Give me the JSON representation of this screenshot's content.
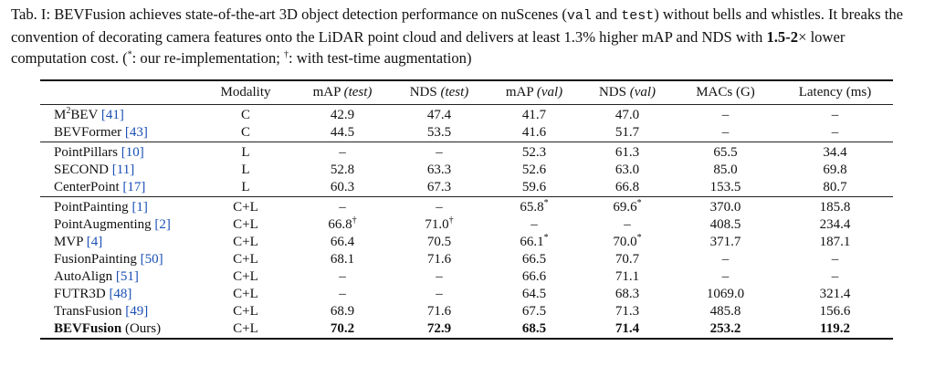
{
  "caption": {
    "prefix": "Tab. I: BEVFusion achieves state-of-the-art 3D object detection performance on nuScenes (",
    "val": "val",
    "and": " and ",
    "test": "test",
    "line1_end": ") without bells and whistles. It breaks the convention of decorating camera features onto the LiDAR point cloud and delivers at least 1.3% higher mAP and NDS with ",
    "speedup": "1.5-2",
    "times": "×",
    "after_speedup": " lower computation cost. (",
    "star": "*",
    "star_note": ": our re-implementation; ",
    "dagger": "†",
    "dagger_note": ": with test-time augmentation)"
  },
  "header": {
    "method": "",
    "modality": "Modality",
    "map_test": "mAP",
    "map_test_split": "(test)",
    "nds_test": "NDS",
    "nds_test_split": "(test)",
    "map_val": "mAP",
    "map_val_split": "(val)",
    "nds_val": "NDS",
    "nds_val_split": "(val)",
    "macs": "MACs (G)",
    "latency": "Latency (ms)"
  },
  "groups": [
    [
      {
        "name": "M",
        "sup": "2",
        "name_rest": "BEV",
        "cite": "[41]",
        "modality": "C",
        "map_test": "42.9",
        "nds_test": "47.4",
        "map_val": "41.7",
        "nds_val": "47.0",
        "macs": "–",
        "latency": "–"
      },
      {
        "name": "BEVFormer",
        "cite": "[43]",
        "modality": "C",
        "map_test": "44.5",
        "nds_test": "53.5",
        "map_val": "41.6",
        "nds_val": "51.7",
        "macs": "–",
        "latency": "–"
      }
    ],
    [
      {
        "name": "PointPillars",
        "cite": "[10]",
        "modality": "L",
        "map_test": "–",
        "nds_test": "–",
        "map_val": "52.3",
        "nds_val": "61.3",
        "macs": "65.5",
        "latency": "34.4"
      },
      {
        "name": "SECOND",
        "cite": "[11]",
        "modality": "L",
        "map_test": "52.8",
        "nds_test": "63.3",
        "map_val": "52.6",
        "nds_val": "63.0",
        "macs": "85.0",
        "latency": "69.8"
      },
      {
        "name": "CenterPoint",
        "cite": "[17]",
        "modality": "L",
        "map_test": "60.3",
        "nds_test": "67.3",
        "map_val": "59.6",
        "nds_val": "66.8",
        "macs": "153.5",
        "latency": "80.7"
      }
    ],
    [
      {
        "name": "PointPainting",
        "cite": "[1]",
        "modality": "C+L",
        "map_test": "–",
        "nds_test": "–",
        "map_val": "65.8",
        "map_val_mark": "*",
        "nds_val": "69.6",
        "nds_val_mark": "*",
        "macs": "370.0",
        "latency": "185.8"
      },
      {
        "name": "PointAugmenting",
        "cite": "[2]",
        "modality": "C+L",
        "map_test": "66.8",
        "map_test_mark": "†",
        "nds_test": "71.0",
        "nds_test_mark": "†",
        "map_val": "–",
        "nds_val": "–",
        "macs": "408.5",
        "latency": "234.4"
      },
      {
        "name": "MVP",
        "cite": "[4]",
        "modality": "C+L",
        "map_test": "66.4",
        "nds_test": "70.5",
        "map_val": "66.1",
        "map_val_mark": "*",
        "nds_val": "70.0",
        "nds_val_mark": "*",
        "macs": "371.7",
        "latency": "187.1"
      },
      {
        "name": "FusionPainting",
        "cite": "[50]",
        "modality": "C+L",
        "map_test": "68.1",
        "nds_test": "71.6",
        "map_val": "66.5",
        "nds_val": "70.7",
        "macs": "–",
        "latency": "–"
      },
      {
        "name": "AutoAlign",
        "cite": "[51]",
        "modality": "C+L",
        "map_test": "–",
        "nds_test": "–",
        "map_val": "66.6",
        "nds_val": "71.1",
        "macs": "–",
        "latency": "–"
      },
      {
        "name": "FUTR3D",
        "cite": "[48]",
        "modality": "C+L",
        "map_test": "–",
        "nds_test": "–",
        "map_val": "64.5",
        "nds_val": "68.3",
        "macs": "1069.0",
        "latency": "321.4"
      },
      {
        "name": "TransFusion",
        "cite": "[49]",
        "modality": "C+L",
        "map_test": "68.9",
        "nds_test": "71.6",
        "map_val": "67.5",
        "nds_val": "71.3",
        "macs": "485.8",
        "latency": "156.6"
      },
      {
        "name": "BEVFusion",
        "name_suffix": " (Ours)",
        "modality": "C+L",
        "map_test": "70.2",
        "nds_test": "72.9",
        "map_val": "68.5",
        "nds_val": "71.4",
        "macs": "253.2",
        "latency": "119.2",
        "bold": true
      }
    ]
  ]
}
